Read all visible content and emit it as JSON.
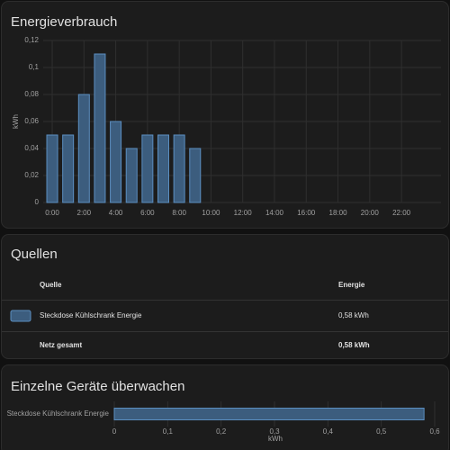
{
  "chart_data": [
    {
      "type": "bar",
      "title": "Energieverbrauch",
      "ylabel": "kWh",
      "categories": [
        "0:00",
        null,
        "2:00",
        null,
        "4:00",
        null,
        "6:00",
        null,
        "8:00",
        null,
        "10:00",
        null,
        "12:00",
        null,
        "14:00",
        null,
        "16:00",
        null,
        "18:00",
        null,
        "20:00",
        null,
        "22:00",
        null
      ],
      "values": [
        0.05,
        0.05,
        0.08,
        0.11,
        0.06,
        0.04,
        0.05,
        0.05,
        0.05,
        0.04,
        null,
        null,
        null,
        null,
        null,
        null,
        null,
        null,
        null,
        null,
        null,
        null,
        null,
        null
      ],
      "color": "#3c5d7e",
      "ylim": [
        0,
        0.12
      ],
      "yticks": [
        0,
        {
          "value": 0.02,
          "label": "0,02"
        },
        {
          "value": 0.04,
          "label": "0,04"
        },
        {
          "value": 0.06,
          "label": "0,06"
        },
        {
          "value": 0.08,
          "label": "0,08"
        },
        {
          "value": 0.1,
          "label": "0,1"
        },
        {
          "value": 0.12,
          "label": "0,12"
        }
      ],
      "grid": true
    },
    {
      "type": "bar",
      "orientation": "horizontal",
      "title": "Einzelne Geräte überwachen",
      "xlabel": "kWh",
      "categories": [
        "Steckdose Kühlschrank Energie"
      ],
      "values": [
        0.58
      ],
      "color": "#3c5d7e",
      "xlim": [
        0,
        0.6
      ],
      "xticks": [
        0,
        {
          "value": 0.1,
          "label": "0,1"
        },
        {
          "value": 0.2,
          "label": "0,2"
        },
        {
          "value": 0.3,
          "label": "0,3"
        },
        {
          "value": 0.4,
          "label": "0,4"
        },
        {
          "value": 0.5,
          "label": "0,5"
        },
        {
          "value": 0.6,
          "label": "0,6"
        }
      ],
      "grid": true
    }
  ],
  "sources": {
    "title": "Quellen",
    "header": [
      "Quelle",
      "Energie"
    ],
    "rows": [
      {
        "color": "#3c5d7e",
        "cells": [
          "Steckdose Kühlschrank Energie",
          "0,58 kWh"
        ]
      }
    ],
    "total": [
      "Netz gesamt",
      "0,58 kWh"
    ]
  }
}
